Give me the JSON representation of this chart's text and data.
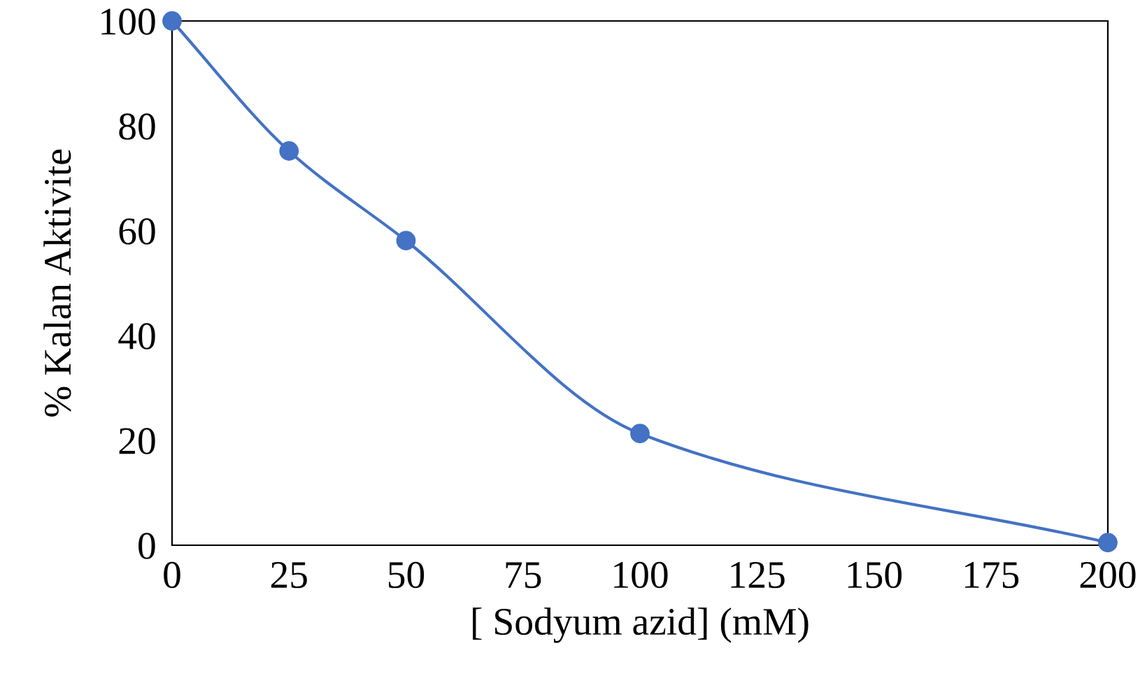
{
  "chart_data": {
    "type": "line",
    "xlabel": "[ Sodyum azid] (mM)",
    "ylabel": "% Kalan Aktivite",
    "x": [
      0,
      25,
      50,
      100,
      200
    ],
    "series": [
      {
        "color": "#4472c4",
        "values": [
          100,
          75.2,
          58.1,
          21.3,
          0.5
        ]
      }
    ],
    "xlim": [
      0,
      200
    ],
    "xticks": [
      0,
      25,
      50,
      75,
      100,
      125,
      150,
      175,
      200
    ],
    "ylim": [
      0,
      100
    ],
    "yticks": [
      0,
      20,
      40,
      60,
      80,
      100
    ],
    "grid": false,
    "marker": "circle",
    "line_style": "solid"
  }
}
